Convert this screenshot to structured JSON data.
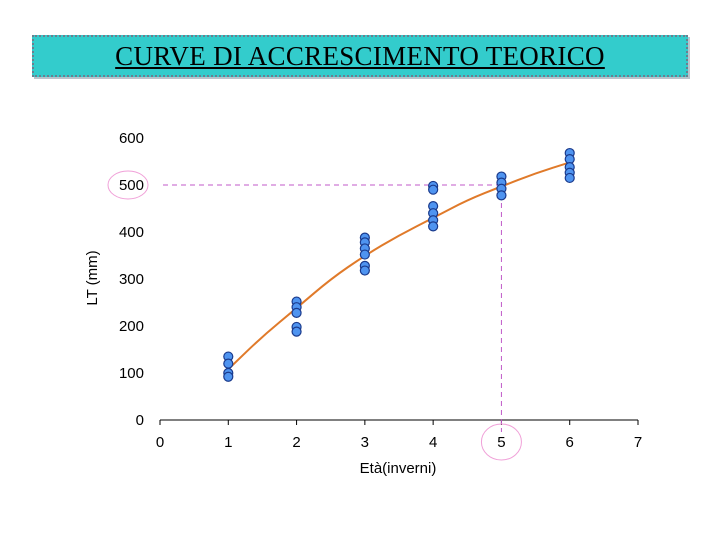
{
  "title": "CURVE DI ACCRESCIMENTO TEORICO",
  "chart_data": {
    "type": "scatter",
    "xlabel": "Età(inverni)",
    "ylabel": "LT (mm)",
    "xlim": [
      0,
      7
    ],
    "ylim": [
      0,
      600
    ],
    "xticks": [
      "0",
      "1",
      "2",
      "3",
      "4",
      "5",
      "6",
      "7"
    ],
    "yticks": [
      "0",
      "100",
      "200",
      "300",
      "400",
      "500",
      "600"
    ],
    "grid": false,
    "points": [
      {
        "x": 1,
        "y": 135
      },
      {
        "x": 1,
        "y": 120
      },
      {
        "x": 1,
        "y": 100
      },
      {
        "x": 1,
        "y": 92
      },
      {
        "x": 2,
        "y": 252
      },
      {
        "x": 2,
        "y": 240
      },
      {
        "x": 2,
        "y": 228
      },
      {
        "x": 2,
        "y": 198
      },
      {
        "x": 2,
        "y": 188
      },
      {
        "x": 3,
        "y": 388
      },
      {
        "x": 3,
        "y": 378
      },
      {
        "x": 3,
        "y": 365
      },
      {
        "x": 3,
        "y": 352
      },
      {
        "x": 3,
        "y": 328
      },
      {
        "x": 3,
        "y": 318
      },
      {
        "x": 4,
        "y": 498
      },
      {
        "x": 4,
        "y": 490
      },
      {
        "x": 4,
        "y": 455
      },
      {
        "x": 4,
        "y": 440
      },
      {
        "x": 4,
        "y": 425
      },
      {
        "x": 4,
        "y": 412
      },
      {
        "x": 5,
        "y": 518
      },
      {
        "x": 5,
        "y": 505
      },
      {
        "x": 5,
        "y": 492
      },
      {
        "x": 5,
        "y": 478
      },
      {
        "x": 6,
        "y": 568
      },
      {
        "x": 6,
        "y": 555
      },
      {
        "x": 6,
        "y": 538
      },
      {
        "x": 6,
        "y": 526
      },
      {
        "x": 6,
        "y": 515
      }
    ],
    "curve": {
      "x": [
        1,
        1.5,
        2,
        2.5,
        3,
        3.5,
        4,
        4.5,
        5,
        5.5,
        6
      ],
      "y": [
        108,
        178,
        238,
        300,
        350,
        393,
        430,
        468,
        497,
        525,
        548
      ]
    },
    "reference": {
      "x": 5,
      "y": 500
    },
    "highlighted_ticks": [
      {
        "axis": "y",
        "label": "500"
      },
      {
        "axis": "x",
        "label": "5"
      }
    ],
    "colors": {
      "point_fill": "#4f94f0",
      "point_stroke": "#1a3a8c",
      "curve": "#e07a2a",
      "reference_line": "#c05ac8",
      "highlight_circle": "#f0a0d8"
    }
  }
}
